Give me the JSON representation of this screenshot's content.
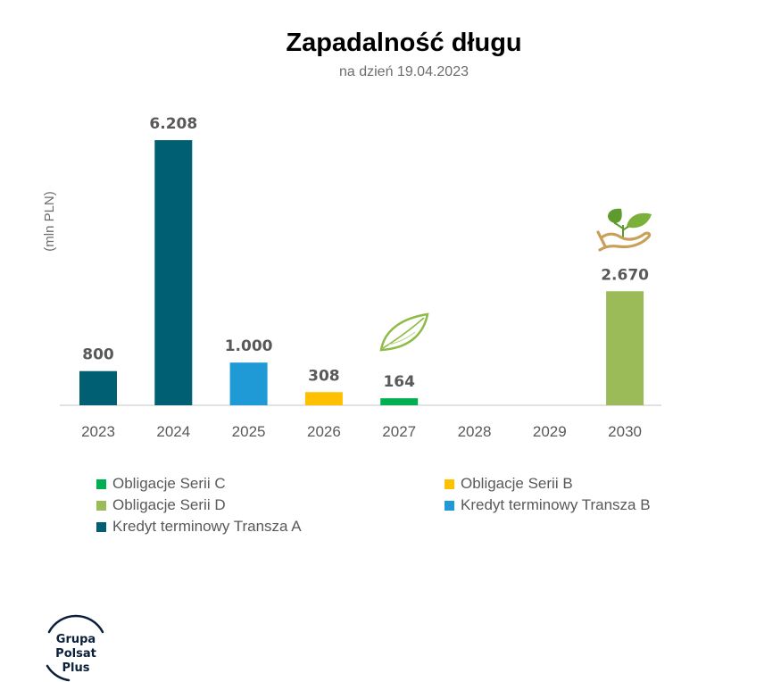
{
  "title": "Zapadalność długu",
  "subtitle": "na dzień 19.04.2023",
  "chart_data": {
    "type": "bar",
    "ylabel": "(mln PLN)",
    "categories": [
      "2023",
      "2024",
      "2025",
      "2026",
      "2027",
      "2028",
      "2029",
      "2030"
    ],
    "ylim": [
      0,
      6208
    ],
    "grid": false,
    "legend_position": "bottom",
    "bars": [
      {
        "category": "2023",
        "value": 800,
        "label": "800",
        "series": "Kredyt terminowy Transza A"
      },
      {
        "category": "2024",
        "value": 6208,
        "label": "6.208",
        "series": "Kredyt terminowy Transza A"
      },
      {
        "category": "2025",
        "value": 1000,
        "label": "1.000",
        "series": "Kredyt terminowy Transza B"
      },
      {
        "category": "2026",
        "value": 308,
        "label": "308",
        "series": "Obligacje Serii B"
      },
      {
        "category": "2027",
        "value": 164,
        "label": "164",
        "series": "Obligacje Serii C"
      },
      {
        "category": "2030",
        "value": 2670,
        "label": "2.670",
        "series": "Obligacje Serii D"
      }
    ],
    "series": [
      {
        "name": "Obligacje Serii C",
        "color": "#00b050"
      },
      {
        "name": "Obligacje Serii B",
        "color": "#ffc000"
      },
      {
        "name": "Obligacje Serii D",
        "color": "#9bbb59"
      },
      {
        "name": "Kredyt terminowy Transza B",
        "color": "#1f9ad6"
      },
      {
        "name": "Kredyt terminowy Transza A",
        "color": "#005f73"
      }
    ]
  },
  "icons": {
    "leaf": "leaf-icon",
    "plant_in_hand": "plant-in-hand-icon"
  },
  "logo": {
    "line1": "Grupa",
    "line2": "Polsat",
    "line3": "Plus"
  }
}
